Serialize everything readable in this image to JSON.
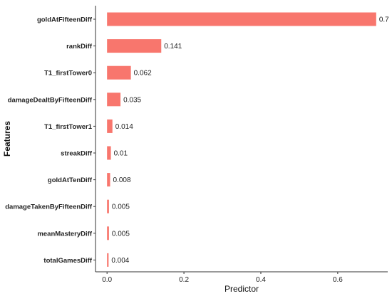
{
  "chart_data": {
    "type": "bar",
    "orientation": "horizontal",
    "categories": [
      "goldAtFifteenDiff",
      "rankDiff",
      "T1_firstTower0",
      "damageDealtByFifteenDiff",
      "T1_firstTower1",
      "streakDiff",
      "goldAtTenDiff",
      "damageTakenByFifteenDiff",
      "meanMasteryDiff",
      "totalGamesDiff"
    ],
    "values": [
      0.7,
      0.141,
      0.062,
      0.035,
      0.014,
      0.01,
      0.008,
      0.005,
      0.005,
      0.004
    ],
    "data_labels": [
      "0.7",
      "0.141",
      "0.062",
      "0.035",
      "0.014",
      "0.01",
      "0.008",
      "0.005",
      "0.005",
      "0.004"
    ],
    "xlabel": "Predictor",
    "ylabel": "Features",
    "xlim": [
      -0.03,
      0.73
    ],
    "xticks": [
      0.0,
      0.2,
      0.4,
      0.6
    ],
    "xtick_labels": [
      "0.0",
      "0.2",
      "0.4",
      "0.6"
    ],
    "grid": false,
    "bar_color": "#f8766d"
  }
}
